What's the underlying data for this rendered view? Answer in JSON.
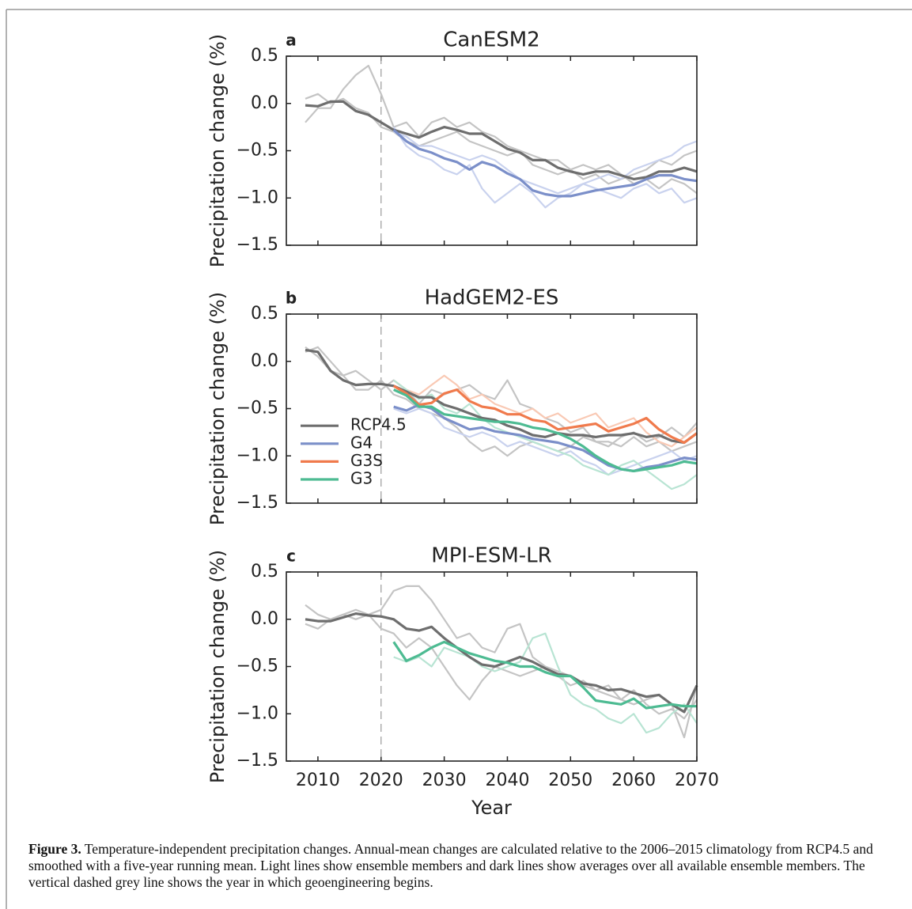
{
  "chart_data": [
    {
      "type": "line",
      "panel": "a",
      "title": "CanESM2",
      "ylabel": "Precipitation change (%)",
      "xlim": [
        2005,
        2070
      ],
      "ylim": [
        -1.5,
        0.5
      ],
      "xticks": [
        2010,
        2020,
        2030,
        2040,
        2050,
        2060,
        2070
      ],
      "yticks": [
        0.5,
        {
          "value": 0,
          "label": "0.0"
        },
        {
          "value": -0.5,
          "label": "−0.5"
        },
        {
          "value": -1,
          "label": "−1.0"
        },
        {
          "value": -1.5,
          "label": "−1.5"
        }
      ],
      "show_xticklabels": false,
      "vline": 2020,
      "grid": false,
      "x": [
        2008,
        2010,
        2012,
        2014,
        2016,
        2018,
        2020,
        2022,
        2024,
        2026,
        2028,
        2030,
        2032,
        2034,
        2036,
        2038,
        2040,
        2042,
        2044,
        2046,
        2048,
        2050,
        2052,
        2054,
        2056,
        2058,
        2060,
        2062,
        2064,
        2066,
        2068,
        2070
      ],
      "series": [
        {
          "name": "RCP4.5",
          "color": "#6e6e6e",
          "member_color": "#c4c4c4",
          "values": [
            -0.02,
            -0.03,
            0.02,
            0.02,
            -0.08,
            -0.12,
            -0.2,
            -0.28,
            -0.32,
            -0.36,
            -0.3,
            -0.25,
            -0.28,
            -0.32,
            -0.32,
            -0.4,
            -0.48,
            -0.52,
            -0.6,
            -0.6,
            -0.68,
            -0.72,
            -0.75,
            -0.72,
            -0.72,
            -0.76,
            -0.8,
            -0.78,
            -0.72,
            -0.72,
            -0.68,
            -0.72
          ],
          "members": [
            [
              0.05,
              0.1,
              0.0,
              0.05,
              -0.05,
              -0.1,
              -0.25,
              -0.3,
              -0.4,
              -0.45,
              -0.4,
              -0.35,
              -0.3,
              -0.4,
              -0.45,
              -0.5,
              -0.55,
              -0.5,
              -0.65,
              -0.7,
              -0.75,
              -0.7,
              -0.8,
              -0.75,
              -0.85,
              -0.8,
              -0.75,
              -0.7,
              -0.6,
              -0.65,
              -0.55,
              -0.5
            ],
            [
              -0.2,
              -0.05,
              -0.05,
              0.15,
              0.3,
              0.4,
              0.1,
              -0.25,
              -0.2,
              -0.35,
              -0.2,
              -0.15,
              -0.25,
              -0.2,
              -0.3,
              -0.35,
              -0.45,
              -0.5,
              -0.55,
              -0.6,
              -0.6,
              -0.7,
              -0.65,
              -0.7,
              -0.65,
              -0.75,
              -0.85,
              -0.8,
              -0.9,
              -0.8,
              -0.85,
              -0.95
            ]
          ]
        },
        {
          "name": "G4",
          "color": "#7b8fc9",
          "member_color": "#c9d2ee",
          "values": [
            null,
            null,
            null,
            null,
            null,
            null,
            null,
            -0.28,
            -0.4,
            -0.48,
            -0.52,
            -0.58,
            -0.62,
            -0.7,
            -0.62,
            -0.66,
            -0.74,
            -0.8,
            -0.92,
            -0.96,
            -0.98,
            -0.98,
            -0.95,
            -0.92,
            -0.9,
            -0.88,
            -0.86,
            -0.8,
            -0.76,
            -0.76,
            -0.8,
            -0.82
          ],
          "members": [
            [
              null,
              null,
              null,
              null,
              null,
              null,
              null,
              -0.25,
              -0.45,
              -0.55,
              -0.6,
              -0.7,
              -0.75,
              -0.65,
              -0.9,
              -1.05,
              -0.95,
              -0.85,
              -0.95,
              -1.1,
              -1.0,
              -0.95,
              -0.85,
              -0.9,
              -0.95,
              -1.0,
              -0.9,
              -0.85,
              -0.95,
              -0.9,
              -1.05,
              -1.0
            ],
            [
              null,
              null,
              null,
              null,
              null,
              null,
              null,
              -0.3,
              -0.35,
              -0.45,
              -0.45,
              -0.5,
              -0.55,
              -0.6,
              -0.55,
              -0.6,
              -0.7,
              -0.8,
              -0.85,
              -0.9,
              -0.95,
              -0.9,
              -0.85,
              -0.8,
              -0.75,
              -0.8,
              -0.7,
              -0.65,
              -0.6,
              -0.55,
              -0.45,
              -0.4
            ]
          ]
        }
      ]
    },
    {
      "type": "line",
      "panel": "b",
      "title": "HadGEM2-ES",
      "ylabel": "Precipitation change (%)",
      "xlim": [
        2005,
        2070
      ],
      "ylim": [
        -1.5,
        0.5
      ],
      "xticks": [
        2010,
        2020,
        2030,
        2040,
        2050,
        2060,
        2070
      ],
      "yticks": [
        0.5,
        {
          "value": 0,
          "label": "0.0"
        },
        {
          "value": -0.5,
          "label": "−0.5"
        },
        {
          "value": -1,
          "label": "−1.0"
        },
        {
          "value": -1.5,
          "label": "−1.5"
        }
      ],
      "show_xticklabels": false,
      "vline": 2020,
      "grid": false,
      "legend": "lower left",
      "x": [
        2008,
        2010,
        2012,
        2014,
        2016,
        2018,
        2020,
        2022,
        2024,
        2026,
        2028,
        2030,
        2032,
        2034,
        2036,
        2038,
        2040,
        2042,
        2044,
        2046,
        2048,
        2050,
        2052,
        2054,
        2056,
        2058,
        2060,
        2062,
        2064,
        2066,
        2068,
        2070
      ],
      "series": [
        {
          "name": "RCP4.5",
          "color": "#6e6e6e",
          "member_color": "#c4c4c4",
          "values": [
            0.12,
            0.1,
            -0.1,
            -0.2,
            -0.25,
            -0.24,
            -0.24,
            -0.26,
            -0.32,
            -0.38,
            -0.38,
            -0.46,
            -0.5,
            -0.55,
            -0.6,
            -0.62,
            -0.68,
            -0.72,
            -0.78,
            -0.8,
            -0.76,
            -0.78,
            -0.78,
            -0.8,
            -0.78,
            -0.78,
            -0.76,
            -0.8,
            -0.78,
            -0.84,
            -0.86,
            -0.76
          ],
          "members": [
            [
              0.15,
              0.05,
              -0.1,
              -0.15,
              -0.1,
              -0.2,
              -0.3,
              -0.2,
              -0.3,
              -0.45,
              -0.3,
              -0.35,
              -0.3,
              -0.25,
              -0.35,
              -0.4,
              -0.2,
              -0.45,
              -0.5,
              -0.6,
              -0.65,
              -0.75,
              -0.7,
              -0.85,
              -0.9,
              -0.8,
              -0.75,
              -0.85,
              -0.8,
              -0.7,
              -0.8,
              -0.65
            ],
            [
              0.1,
              0.15,
              0.0,
              -0.15,
              -0.3,
              -0.3,
              -0.2,
              -0.35,
              -0.4,
              -0.5,
              -0.55,
              -0.6,
              -0.7,
              -0.85,
              -0.95,
              -0.9,
              -1.0,
              -0.9,
              -0.85,
              -0.9,
              -0.95,
              -0.9,
              -0.8,
              -0.85,
              -0.85,
              -0.9,
              -0.8,
              -0.9,
              -0.85,
              -0.95,
              -0.9,
              -0.85
            ]
          ]
        },
        {
          "name": "G4",
          "color": "#7b8fc9",
          "member_color": "#c9d2ee",
          "values": [
            null,
            null,
            null,
            null,
            null,
            null,
            null,
            -0.48,
            -0.52,
            -0.46,
            -0.5,
            -0.6,
            -0.66,
            -0.72,
            -0.7,
            -0.74,
            -0.76,
            -0.78,
            -0.82,
            -0.84,
            -0.86,
            -0.9,
            -0.94,
            -1.02,
            -1.1,
            -1.14,
            -1.16,
            -1.12,
            -1.1,
            -1.06,
            -1.02,
            -1.04
          ],
          "members": [
            [
              null,
              null,
              null,
              null,
              null,
              null,
              null,
              -0.5,
              -0.55,
              -0.5,
              -0.55,
              -0.7,
              -0.75,
              -0.8,
              -0.75,
              -0.8,
              -0.9,
              -0.85,
              -0.9,
              -0.95,
              -1.0,
              -0.95,
              -1.05,
              -1.1,
              -1.2,
              -1.15,
              -1.1,
              -1.05,
              -1.0,
              -0.95,
              -1.05,
              -1.0
            ]
          ]
        },
        {
          "name": "G3S",
          "color": "#f07a4c",
          "member_color": "#f9c9b4",
          "values": [
            null,
            null,
            null,
            null,
            null,
            null,
            null,
            -0.26,
            -0.34,
            -0.46,
            -0.44,
            -0.34,
            -0.3,
            -0.42,
            -0.48,
            -0.5,
            -0.56,
            -0.56,
            -0.62,
            -0.64,
            -0.72,
            -0.7,
            -0.68,
            -0.66,
            -0.74,
            -0.7,
            -0.66,
            -0.6,
            -0.72,
            -0.8,
            -0.86,
            -0.76
          ],
          "members": [
            [
              null,
              null,
              null,
              null,
              null,
              null,
              null,
              -0.2,
              -0.3,
              -0.35,
              -0.25,
              -0.15,
              -0.25,
              -0.4,
              -0.35,
              -0.45,
              -0.5,
              -0.55,
              -0.5,
              -0.6,
              -0.55,
              -0.65,
              -0.6,
              -0.55,
              -0.7,
              -0.65,
              -0.6,
              -0.75,
              -0.85,
              -0.9,
              -0.8,
              -0.7
            ]
          ]
        },
        {
          "name": "G3",
          "color": "#4dbb92",
          "member_color": "#b8e4d3",
          "values": [
            null,
            null,
            null,
            null,
            null,
            null,
            null,
            -0.3,
            -0.36,
            -0.48,
            -0.48,
            -0.56,
            -0.58,
            -0.6,
            -0.62,
            -0.64,
            -0.64,
            -0.66,
            -0.7,
            -0.72,
            -0.76,
            -0.82,
            -0.9,
            -1.0,
            -1.08,
            -1.14,
            -1.16,
            -1.14,
            -1.12,
            -1.1,
            -1.06,
            -1.08
          ],
          "members": [
            [
              null,
              null,
              null,
              null,
              null,
              null,
              null,
              -0.2,
              -0.3,
              -0.4,
              -0.35,
              -0.5,
              -0.55,
              -0.45,
              -0.6,
              -0.7,
              -0.75,
              -0.8,
              -0.85,
              -0.9,
              -0.95,
              -1.0,
              -1.1,
              -1.15,
              -1.2,
              -1.1,
              -1.05,
              -1.15,
              -1.25,
              -1.35,
              -1.3,
              -1.2
            ]
          ]
        }
      ]
    },
    {
      "type": "line",
      "panel": "c",
      "title": "MPI-ESM-LR",
      "ylabel": "Precipitation change (%)",
      "xlabel": "Year",
      "xlim": [
        2005,
        2070
      ],
      "ylim": [
        -1.5,
        0.5
      ],
      "xticks": [
        2010,
        2020,
        2030,
        2040,
        2050,
        2060,
        2070
      ],
      "yticks": [
        0.5,
        {
          "value": 0,
          "label": "0.0"
        },
        {
          "value": -0.5,
          "label": "−0.5"
        },
        {
          "value": -1,
          "label": "−1.0"
        },
        {
          "value": -1.5,
          "label": "−1.5"
        }
      ],
      "show_xticklabels": true,
      "vline": 2020,
      "grid": false,
      "x": [
        2008,
        2010,
        2012,
        2014,
        2016,
        2018,
        2020,
        2022,
        2024,
        2026,
        2028,
        2030,
        2032,
        2034,
        2036,
        2038,
        2040,
        2042,
        2044,
        2046,
        2048,
        2050,
        2052,
        2054,
        2056,
        2058,
        2060,
        2062,
        2064,
        2066,
        2068,
        2070
      ],
      "series": [
        {
          "name": "RCP4.5",
          "color": "#6e6e6e",
          "member_color": "#c4c4c4",
          "values": [
            0.0,
            -0.02,
            -0.02,
            0.02,
            0.06,
            0.04,
            0.03,
            0.0,
            -0.1,
            -0.12,
            -0.08,
            -0.2,
            -0.3,
            -0.4,
            -0.48,
            -0.5,
            -0.45,
            -0.4,
            -0.45,
            -0.52,
            -0.58,
            -0.6,
            -0.68,
            -0.7,
            -0.75,
            -0.74,
            -0.78,
            -0.82,
            -0.8,
            -0.9,
            -0.98,
            -0.7
          ],
          "members": [
            [
              0.15,
              0.05,
              0.0,
              0.05,
              0.1,
              0.05,
              0.1,
              0.3,
              0.35,
              0.35,
              0.2,
              0.0,
              -0.2,
              -0.15,
              -0.3,
              -0.35,
              -0.1,
              -0.05,
              -0.4,
              -0.5,
              -0.55,
              -0.6,
              -0.7,
              -0.75,
              -0.8,
              -0.85,
              -0.9,
              -0.85,
              -0.8,
              -0.9,
              -1.25,
              -0.7
            ],
            [
              -0.05,
              -0.1,
              0.0,
              0.05,
              0.0,
              0.05,
              -0.1,
              -0.15,
              -0.3,
              -0.2,
              -0.3,
              -0.5,
              -0.7,
              -0.85,
              -0.65,
              -0.5,
              -0.55,
              -0.6,
              -0.55,
              -0.5,
              -0.6,
              -0.7,
              -0.65,
              -0.75,
              -0.7,
              -0.85,
              -0.75,
              -0.9,
              -1.0,
              -0.95,
              -1.05,
              -0.85
            ]
          ]
        },
        {
          "name": "G3",
          "color": "#4dbb92",
          "member_color": "#b8e4d3",
          "values": [
            null,
            null,
            null,
            null,
            null,
            null,
            null,
            -0.24,
            -0.44,
            -0.38,
            -0.3,
            -0.24,
            -0.3,
            -0.36,
            -0.4,
            -0.44,
            -0.46,
            -0.5,
            -0.5,
            -0.56,
            -0.6,
            -0.6,
            -0.72,
            -0.86,
            -0.88,
            -0.9,
            -0.84,
            -0.94,
            -0.92,
            -0.9,
            -0.92,
            -0.92
          ],
          "members": [
            [
              null,
              null,
              null,
              null,
              null,
              null,
              null,
              -0.4,
              -0.45,
              -0.4,
              -0.5,
              -0.3,
              -0.35,
              -0.4,
              -0.5,
              -0.55,
              -0.5,
              -0.45,
              -0.2,
              -0.15,
              -0.5,
              -0.8,
              -0.9,
              -0.95,
              -1.05,
              -1.1,
              -1.0,
              -1.2,
              -1.15,
              -1.0,
              -0.9,
              -1.1
            ]
          ]
        }
      ]
    }
  ],
  "caption": {
    "label": "Figure 3.",
    "text": "Temperature-independent precipitation changes. Annual-mean changes are calculated relative to the 2006–2015 climatology from RCP4.5 and smoothed with a five-year running mean. Light lines show ensemble members and dark lines show averages over all available ensemble members. The vertical dashed grey line shows the year in which geoengineering begins."
  }
}
